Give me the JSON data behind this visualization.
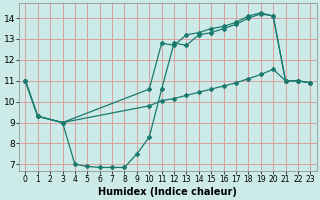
{
  "xlabel": "Humidex (Indice chaleur)",
  "bg_color": "#cceae8",
  "grid_color": "#d9a0a0",
  "line_color": "#1a7a6e",
  "xlim": [
    -0.5,
    23.5
  ],
  "ylim": [
    6.7,
    14.7
  ],
  "yticks": [
    7,
    8,
    9,
    10,
    11,
    12,
    13,
    14
  ],
  "xticks": [
    0,
    1,
    2,
    3,
    4,
    5,
    6,
    7,
    8,
    9,
    10,
    11,
    12,
    13,
    14,
    15,
    16,
    17,
    18,
    19,
    20,
    21,
    22,
    23
  ],
  "curve1_x": [
    0,
    1,
    3,
    10,
    11,
    12,
    13,
    14,
    15,
    16,
    17,
    18,
    19,
    20,
    21,
    22,
    23
  ],
  "curve1_y": [
    11,
    9.3,
    9.0,
    10.6,
    12.8,
    12.7,
    13.2,
    13.3,
    13.5,
    13.6,
    13.8,
    14.1,
    14.25,
    14.1,
    11.0,
    11.0,
    10.9
  ],
  "curve2_x": [
    0,
    1,
    3,
    4,
    5,
    6,
    7,
    8,
    9,
    10,
    11,
    12,
    13,
    14,
    15,
    16,
    17,
    18,
    19,
    20,
    21,
    22,
    23
  ],
  "curve2_y": [
    11,
    9.3,
    9.0,
    7.0,
    6.9,
    6.85,
    6.85,
    6.85,
    7.5,
    8.3,
    10.6,
    12.8,
    12.7,
    13.2,
    13.3,
    13.5,
    13.7,
    14.0,
    14.2,
    14.1,
    11.0,
    11.0,
    10.9
  ],
  "curve3_x": [
    0,
    1,
    3,
    10,
    11,
    12,
    13,
    14,
    15,
    16,
    17,
    18,
    19,
    20,
    21,
    22,
    23
  ],
  "curve3_y": [
    11,
    9.3,
    9.0,
    9.8,
    10.05,
    10.15,
    10.3,
    10.45,
    10.6,
    10.75,
    10.9,
    11.1,
    11.3,
    11.55,
    11.0,
    11.0,
    10.9
  ],
  "tick_fontsize": 6,
  "xlabel_fontsize": 7
}
